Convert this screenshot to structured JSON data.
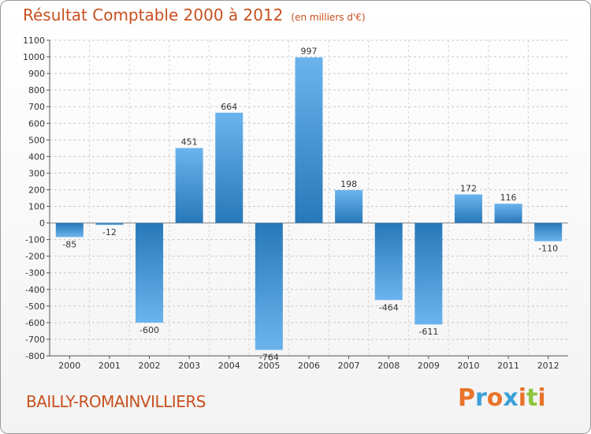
{
  "header": {
    "title": "Résultat Comptable 2000 à 2012",
    "subtitle": "(en milliers d'€)"
  },
  "footer": {
    "place": "BAILLY-ROMAINVILLIERS",
    "logo": "Proxiti"
  },
  "colors": {
    "bar_light": "#6bb4ee",
    "bar_dark": "#2878b8",
    "title": "#c8501e",
    "logo_letters": [
      "#e8742a",
      "#3aa0d8",
      "#e8742a",
      "#3aa0d8",
      "#e8742a",
      "#8cc63e",
      "#e8742a"
    ]
  },
  "chart_data": {
    "type": "bar",
    "categories": [
      "2000",
      "2001",
      "2002",
      "2003",
      "2004",
      "2005",
      "2006",
      "2007",
      "2008",
      "2009",
      "2010",
      "2011",
      "2012"
    ],
    "values": [
      -85,
      -12,
      -600,
      451,
      664,
      -764,
      997,
      198,
      -464,
      -611,
      172,
      116,
      -110
    ],
    "data_labels": [
      "-85",
      "-12",
      "-600",
      "451",
      "664",
      "-764",
      "997",
      "198",
      "-464",
      "-611",
      "172",
      "116",
      "-110"
    ],
    "ylim": [
      -800,
      1100
    ],
    "yticks": [
      1100,
      1000,
      900,
      800,
      700,
      600,
      500,
      400,
      300,
      200,
      100,
      0,
      -100,
      -200,
      -300,
      -400,
      -500,
      -600,
      -700,
      -800
    ],
    "grid": true
  }
}
